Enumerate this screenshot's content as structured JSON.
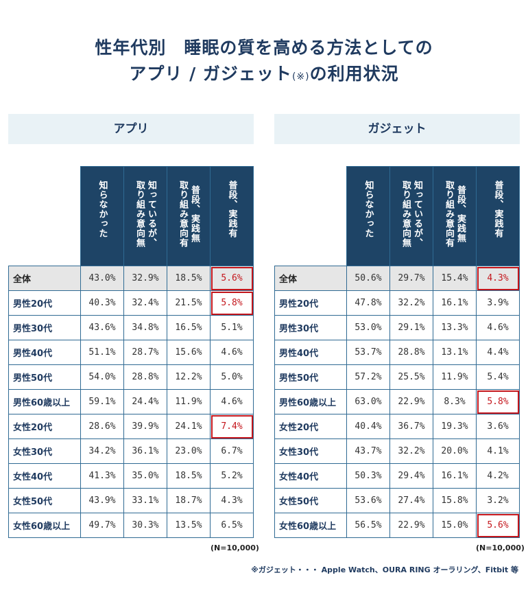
{
  "title_line1": "性年代別　睡眠の質を高める方法としての",
  "title_line2_main": "アプリ / ガジェット",
  "title_line2_mark": "(※)",
  "title_line2_tail": "の利用状況",
  "columns": [
    "知らなかった",
    "知っているが、\n取り組み意向無",
    "普段、実践無\n取り組み意向有",
    "普段、実践有"
  ],
  "rows": [
    "全体",
    "男性20代",
    "男性30代",
    "男性40代",
    "男性50代",
    "男性60歳以上",
    "女性20代",
    "女性30代",
    "女性40代",
    "女性50代",
    "女性60歳以上"
  ],
  "highlight_color": "#c4161c",
  "header_color": "#1e4466",
  "chart_data": [
    {
      "type": "table",
      "title": "アプリ",
      "columns": [
        "知らなかった",
        "知っているが、取り組み意向無",
        "普段、実践無 取り組み意向有",
        "普段、実践有"
      ],
      "rows": [
        "全体",
        "男性20代",
        "男性30代",
        "男性40代",
        "男性50代",
        "男性60歳以上",
        "女性20代",
        "女性30代",
        "女性40代",
        "女性50代",
        "女性60歳以上"
      ],
      "values": [
        [
          "43.0%",
          "32.9%",
          "18.5%",
          "5.6%"
        ],
        [
          "40.3%",
          "32.4%",
          "21.5%",
          "5.8%"
        ],
        [
          "43.6%",
          "34.8%",
          "16.5%",
          "5.1%"
        ],
        [
          "51.1%",
          "28.7%",
          "15.6%",
          "4.6%"
        ],
        [
          "54.0%",
          "28.8%",
          "12.2%",
          "5.0%"
        ],
        [
          "59.1%",
          "24.4%",
          "11.9%",
          "4.6%"
        ],
        [
          "28.6%",
          "39.9%",
          "24.1%",
          "7.4%"
        ],
        [
          "34.2%",
          "36.1%",
          "23.0%",
          "6.7%"
        ],
        [
          "41.3%",
          "35.0%",
          "18.5%",
          "5.2%"
        ],
        [
          "43.9%",
          "33.1%",
          "18.7%",
          "4.3%"
        ],
        [
          "49.7%",
          "30.3%",
          "13.5%",
          "6.5%"
        ]
      ],
      "highlighted": [
        [
          0,
          3
        ],
        [
          1,
          3
        ],
        [
          6,
          3
        ]
      ],
      "n_label": "(N=10,000)"
    },
    {
      "type": "table",
      "title": "ガジェット",
      "columns": [
        "知らなかった",
        "知っているが、取り組み意向無",
        "普段、実践無 取り組み意向有",
        "普段、実践有"
      ],
      "rows": [
        "全体",
        "男性20代",
        "男性30代",
        "男性40代",
        "男性50代",
        "男性60歳以上",
        "女性20代",
        "女性30代",
        "女性40代",
        "女性50代",
        "女性60歳以上"
      ],
      "values": [
        [
          "50.6%",
          "29.7%",
          "15.4%",
          "4.3%"
        ],
        [
          "47.8%",
          "32.2%",
          "16.1%",
          "3.9%"
        ],
        [
          "53.0%",
          "29.1%",
          "13.3%",
          "4.6%"
        ],
        [
          "53.7%",
          "28.8%",
          "13.1%",
          "4.4%"
        ],
        [
          "57.2%",
          "25.5%",
          "11.9%",
          "5.4%"
        ],
        [
          "63.0%",
          "22.9%",
          "8.3%",
          "5.8%"
        ],
        [
          "40.4%",
          "36.7%",
          "19.3%",
          "3.6%"
        ],
        [
          "43.7%",
          "32.2%",
          "20.0%",
          "4.1%"
        ],
        [
          "50.3%",
          "29.4%",
          "16.1%",
          "4.2%"
        ],
        [
          "53.6%",
          "27.4%",
          "15.8%",
          "3.2%"
        ],
        [
          "56.5%",
          "22.9%",
          "15.0%",
          "5.6%"
        ]
      ],
      "highlighted": [
        [
          0,
          3
        ],
        [
          5,
          3
        ],
        [
          10,
          3
        ]
      ],
      "n_label": "(N=10,000)"
    }
  ],
  "footnote": "※ガジェット・・・ Apple Watch、OURA RING オーラリング、Fitbit 等"
}
